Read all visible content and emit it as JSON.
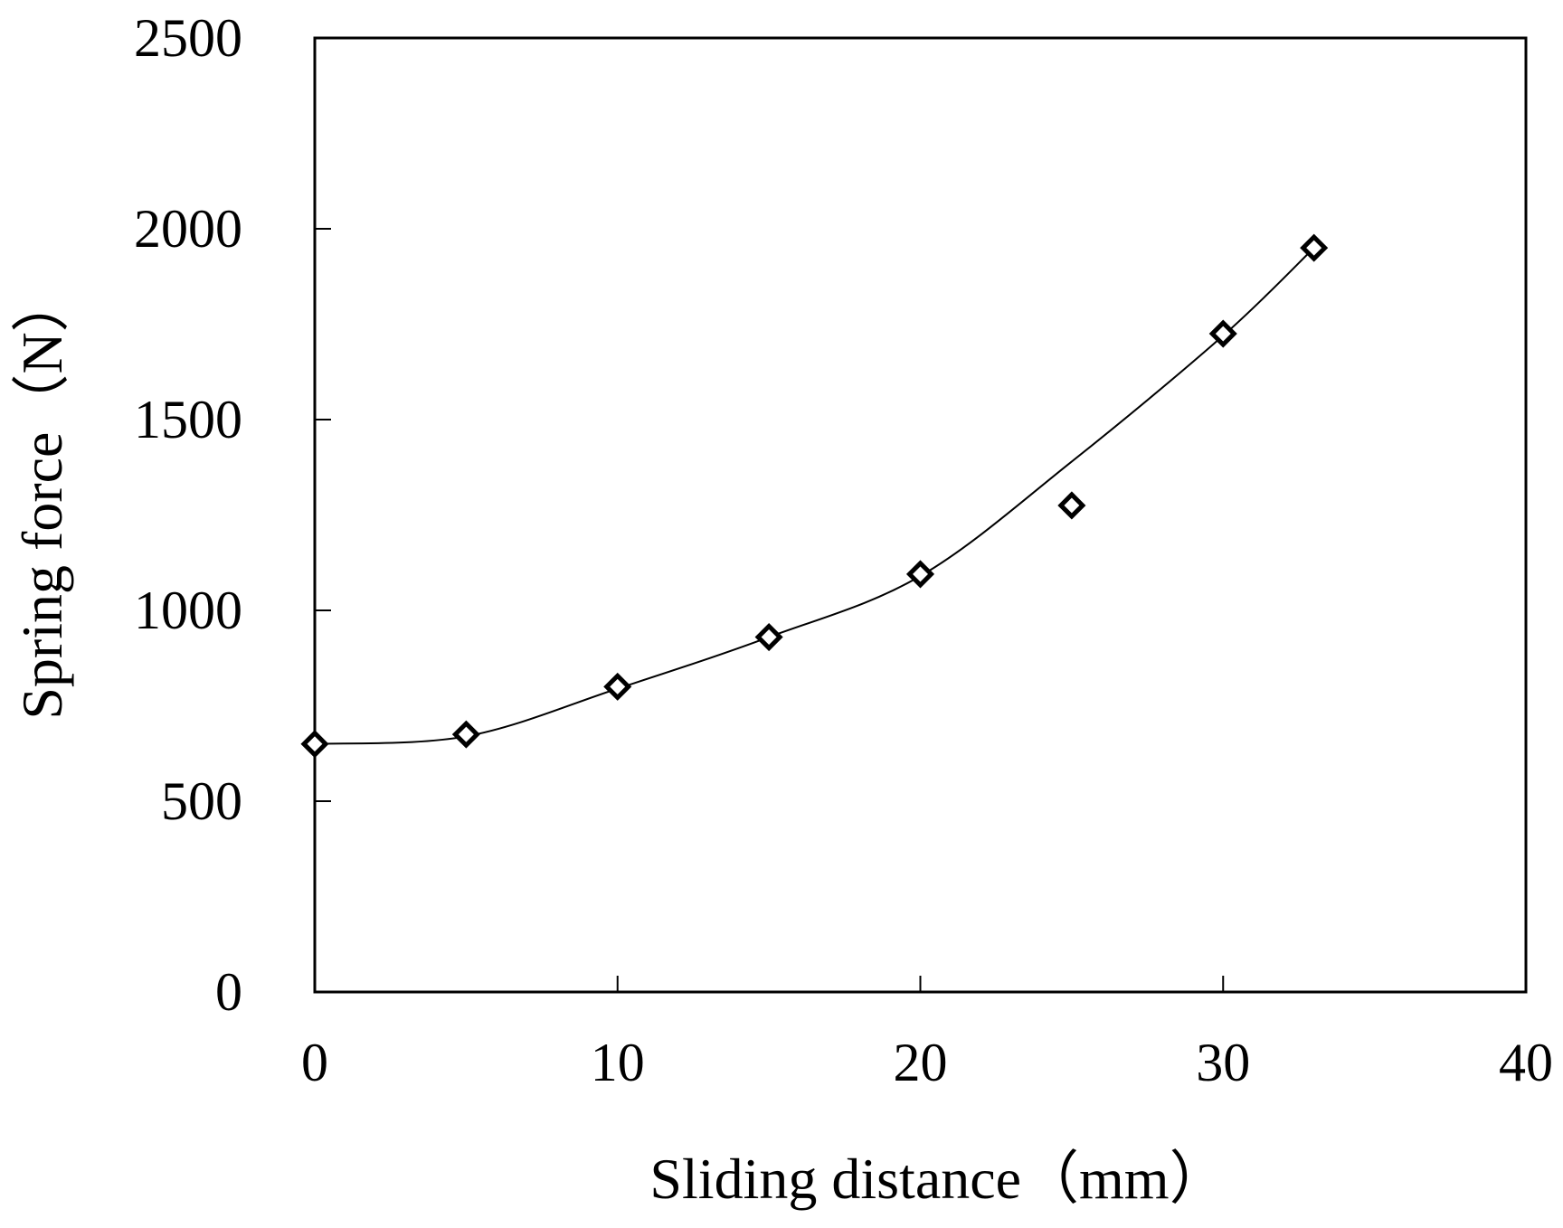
{
  "chart_data": {
    "type": "scatter",
    "title": "",
    "xlabel": "Sliding distance（mm）",
    "ylabel": "Spring force（N）",
    "xlim": [
      0,
      40
    ],
    "ylim": [
      0,
      2500
    ],
    "xticks": [
      "0",
      "10",
      "20",
      "30",
      "40"
    ],
    "yticks": [
      "0",
      "500",
      "1000",
      "1500",
      "2000",
      "2500"
    ],
    "grid": false,
    "legend": "none",
    "series": [
      {
        "marker": "diamond",
        "x": [
          0,
          5,
          10,
          15,
          20,
          25,
          30,
          33
        ],
        "y": [
          650,
          675,
          800,
          930,
          1095,
          1275,
          1725,
          1950
        ]
      }
    ],
    "fit_curve": {
      "style": "smooth line",
      "x": [
        0,
        5,
        10,
        15,
        20,
        25,
        30,
        33
      ],
      "y": [
        650,
        670,
        795,
        930,
        1090,
        1390,
        1720,
        1950
      ]
    },
    "colors": {
      "line": "#000000",
      "marker": "#000000",
      "background": "#ffffff"
    }
  }
}
